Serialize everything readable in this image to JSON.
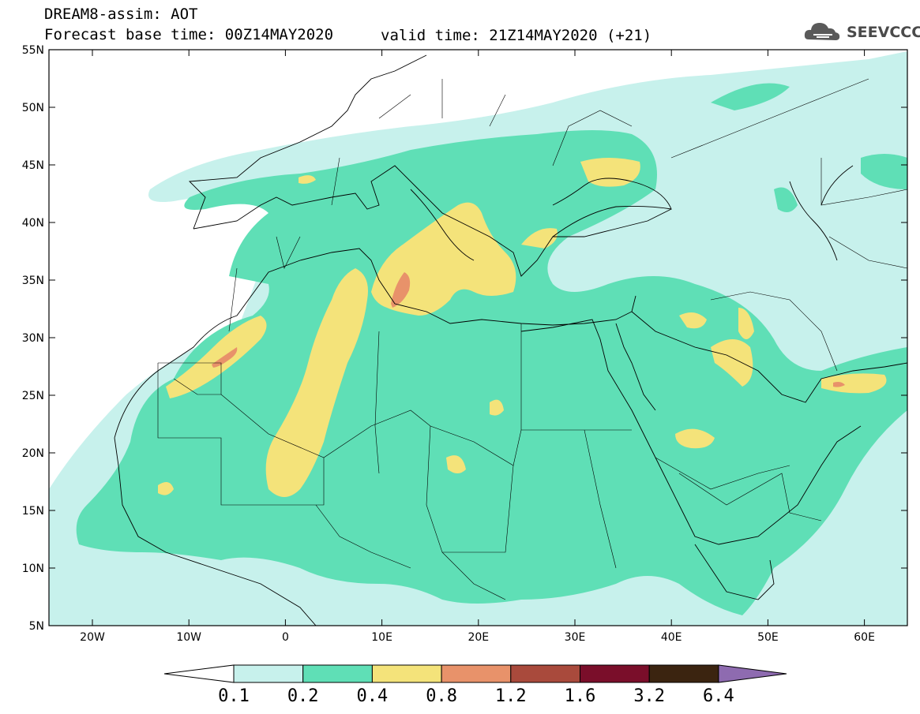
{
  "header": {
    "title_line1": "DREAM8-assim: AOT",
    "title_line2_left": "Forecast base time: 00Z14MAY2020",
    "title_line2_right": "valid time: 21Z14MAY2020 (+21)",
    "logo_text": "SEEVCCC"
  },
  "axes": {
    "lat_labels": [
      "55N",
      "50N",
      "45N",
      "40N",
      "35N",
      "30N",
      "25N",
      "20N",
      "15N",
      "10N",
      "5N"
    ],
    "lon_labels": [
      "20W",
      "10W",
      "0",
      "10E",
      "20E",
      "30E",
      "40E",
      "50E",
      "60E"
    ]
  },
  "colorbar": {
    "labels": [
      "0.1",
      "0.2",
      "0.4",
      "0.8",
      "1.2",
      "1.6",
      "3.2",
      "6.4"
    ],
    "colors": [
      "#c7f1ec",
      "#5fdfb6",
      "#f4e37a",
      "#e8926a",
      "#a94a3c",
      "#7a0e2a",
      "#3b2410",
      "#8e6bb0"
    ]
  },
  "map_colors": {
    "level1": "#c7f1ec",
    "level2": "#5fdfb6",
    "level3": "#f4e37a",
    "level4": "#e8926a"
  }
}
